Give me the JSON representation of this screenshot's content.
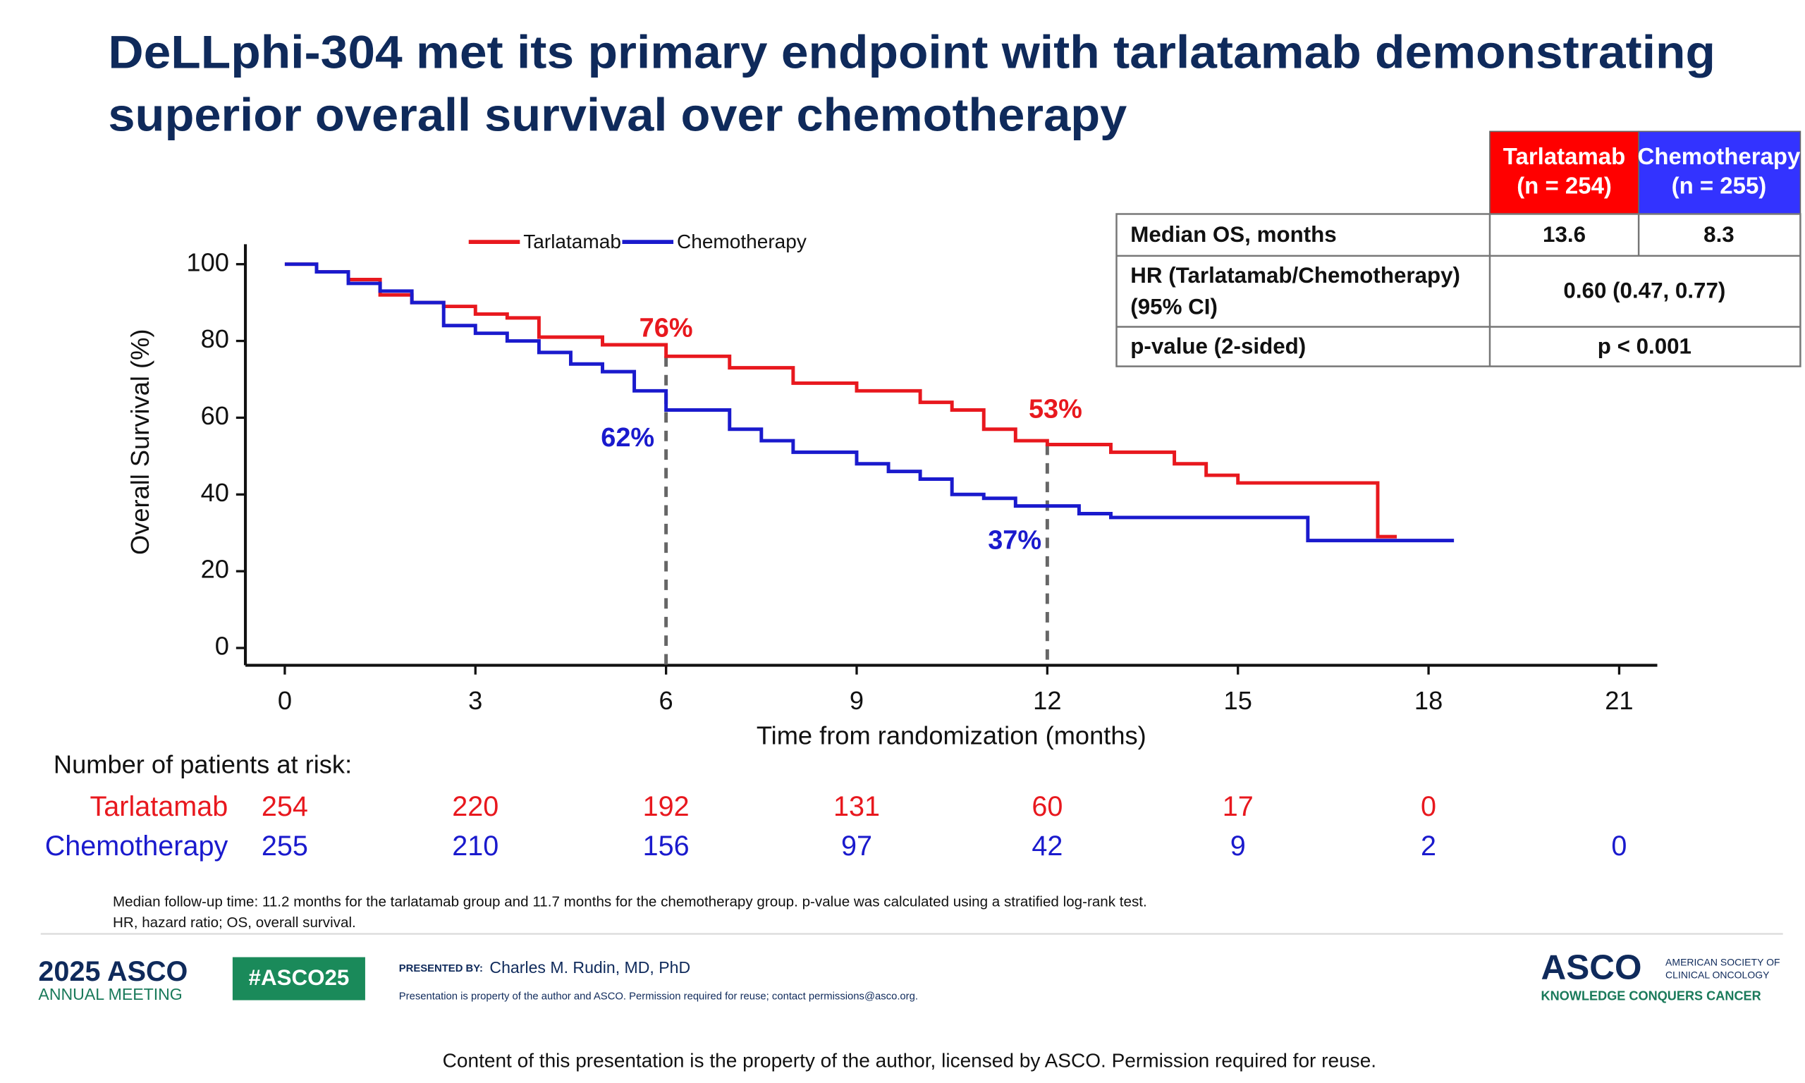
{
  "slide": {
    "title": [
      "DeLLphi-304 met its primary endpoint with tarlatamab demonstrating",
      "superior overall survival over chemotherapy"
    ]
  },
  "stats_table": {
    "headers": [
      [
        "Tarlatamab",
        "(n = 254)"
      ],
      [
        "Chemotherapy",
        "(n = 255)"
      ]
    ],
    "rows": [
      {
        "label": "Median OS, months",
        "values": [
          13.6,
          8.3
        ]
      },
      {
        "label": [
          "HR (Tarlatamab/Chemotherapy)",
          "(95% CI)"
        ],
        "value": "0.60 (0.47, 0.77)"
      },
      {
        "label": "p-value (2-sided)",
        "value": "p < 0.001"
      }
    ]
  },
  "chart_data": {
    "type": "step",
    "x_label": "Time from randomization (months)",
    "y_label": "Overall Survival (%)",
    "xlim": [
      -0.62,
      21.6
    ],
    "xticks": [
      0,
      3,
      6,
      9,
      12,
      15,
      18,
      21
    ],
    "ylim": [
      -4.5,
      105.2
    ],
    "yticks": [
      0,
      20,
      40,
      60,
      80,
      100
    ],
    "series": [
      {
        "name": "Tarlatamab",
        "color": "#e8181e",
        "x": [
          0,
          0.5,
          1,
          1.5,
          2,
          2.5,
          3,
          3.5,
          4,
          5,
          6,
          7,
          8,
          9,
          10,
          10.5,
          11,
          11.5,
          12,
          13,
          14,
          14.5,
          15,
          17.2,
          17.2,
          17.5
        ],
        "values": [
          100,
          98,
          96,
          92,
          90,
          89,
          87,
          86,
          81,
          79,
          76,
          73,
          69,
          67,
          64,
          62,
          57,
          54,
          53,
          51,
          48,
          45,
          43,
          43,
          29,
          29
        ]
      },
      {
        "name": "Chemotherapy",
        "color": "#1a1acd",
        "x": [
          0,
          0.5,
          1,
          1.5,
          2,
          2.5,
          3,
          3.5,
          4,
          4.5,
          5,
          5.5,
          6,
          7,
          7.5,
          8,
          9,
          9.5,
          10,
          10.5,
          11,
          11.5,
          12,
          12.5,
          13,
          16.1,
          16.1,
          18.4
        ],
        "values": [
          100,
          98,
          95,
          93,
          90,
          84,
          82,
          80,
          77,
          74,
          72,
          67,
          62,
          57,
          54,
          51,
          48,
          46,
          44,
          40,
          39,
          37,
          37,
          35,
          34,
          34,
          28,
          28
        ]
      }
    ],
    "annotations": [
      {
        "text": "76%",
        "x": 6,
        "y": 76,
        "color": "#e8181e"
      },
      {
        "text": "62%",
        "x": 6,
        "y": 62,
        "color": "#1a1acd"
      },
      {
        "text": "53%",
        "x": 12,
        "y": 53,
        "color": "#e8181e"
      },
      {
        "text": "37%",
        "x": 12,
        "y": 37,
        "color": "#1a1acd"
      }
    ],
    "reference_lines": [
      6,
      12
    ],
    "risk_table": {
      "title": "Number of patients at risk:",
      "rows": [
        {
          "name": "Tarlatamab",
          "values": [
            254,
            220,
            192,
            131,
            60,
            17,
            0,
            null
          ]
        },
        {
          "name": "Chemotherapy",
          "values": [
            255,
            210,
            156,
            97,
            42,
            9,
            2,
            0
          ]
        }
      ]
    }
  },
  "footnotes": [
    "Median follow-up time: 11.2 months for the tarlatamab group and 11.7 months for the chemotherapy group. p-value was calculated using a stratified log-rank test.",
    "HR, hazard ratio; OS, overall survival."
  ],
  "footer": {
    "meeting_year": "2025 ASCO",
    "meeting_name": "ANNUAL MEETING",
    "hashtag": "#ASCO25",
    "presented_by_label": "PRESENTED BY:",
    "presenter": "Charles M. Rudin, MD, PhD",
    "notice": "Presentation is property of the author and ASCO. Permission required for reuse; contact permissions@asco.org.",
    "org_logo": "ASCO",
    "org_name": [
      "AMERICAN SOCIETY OF",
      "CLINICAL ONCOLOGY"
    ],
    "tagline": "KNOWLEDGE CONQUERS CANCER",
    "disclaimer": "Content of this presentation is the property of the author, licensed by ASCO. Permission required for reuse."
  }
}
